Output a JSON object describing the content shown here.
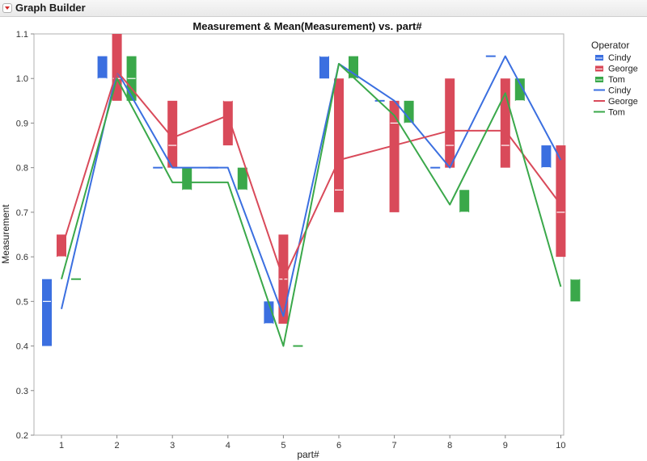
{
  "window": {
    "title": "Graph Builder",
    "menu_icon": "red-triangle-icon"
  },
  "colors": {
    "Cindy": "#3b6fe0",
    "George": "#d94a5a",
    "Tom": "#3aa84a"
  },
  "chart_data": {
    "type": "box-and-line",
    "title": "Measurement & Mean(Measurement) vs. part#",
    "xlabel": "part#",
    "ylabel": "Measurement",
    "categories": [
      "1",
      "2",
      "3",
      "4",
      "5",
      "6",
      "7",
      "8",
      "9",
      "10"
    ],
    "ylim": [
      0.2,
      1.1
    ],
    "yticks": [
      "0.2",
      "0.3",
      "0.4",
      "0.5",
      "0.6",
      "0.7",
      "0.8",
      "0.9",
      "1.0",
      "1.1"
    ],
    "legend": {
      "title": "Operator",
      "position": "right",
      "entries": [
        {
          "name": "Cindy",
          "kind": "box"
        },
        {
          "name": "George",
          "kind": "box"
        },
        {
          "name": "Tom",
          "kind": "box"
        },
        {
          "name": "Cindy",
          "kind": "line"
        },
        {
          "name": "George",
          "kind": "line"
        },
        {
          "name": "Tom",
          "kind": "line"
        }
      ]
    },
    "series": [
      {
        "name": "Cindy",
        "boxes": [
          {
            "min": 0.4,
            "max": 0.55,
            "median": 0.5
          },
          {
            "min": 1.0,
            "max": 1.05,
            "median": 1.0
          },
          {
            "min": 0.8,
            "max": 0.8,
            "median": 0.8
          },
          {
            "min": 0.8,
            "max": 0.8,
            "median": 0.8
          },
          {
            "min": 0.45,
            "max": 0.5,
            "median": 0.45
          },
          {
            "min": 1.0,
            "max": 1.05,
            "median": 1.05
          },
          {
            "min": 0.95,
            "max": 0.95,
            "median": 0.95
          },
          {
            "min": 0.8,
            "max": 0.8,
            "median": 0.8
          },
          {
            "min": 1.05,
            "max": 1.05,
            "median": 1.05
          },
          {
            "min": 0.8,
            "max": 0.85,
            "median": 0.8
          }
        ],
        "means": [
          0.483,
          1.017,
          0.8,
          0.8,
          0.467,
          1.033,
          0.95,
          0.8,
          1.05,
          0.817
        ]
      },
      {
        "name": "George",
        "boxes": [
          {
            "min": 0.6,
            "max": 0.65,
            "median": 0.6
          },
          {
            "min": 0.95,
            "max": 1.1,
            "median": 1.0
          },
          {
            "min": 0.8,
            "max": 0.95,
            "median": 0.85
          },
          {
            "min": 0.85,
            "max": 0.95,
            "median": 0.95
          },
          {
            "min": 0.45,
            "max": 0.65,
            "median": 0.55
          },
          {
            "min": 0.7,
            "max": 1.0,
            "median": 0.75
          },
          {
            "min": 0.7,
            "max": 0.95,
            "median": 0.9
          },
          {
            "min": 0.8,
            "max": 1.0,
            "median": 0.85
          },
          {
            "min": 0.8,
            "max": 1.0,
            "median": 0.85
          },
          {
            "min": 0.6,
            "max": 0.85,
            "median": 0.7
          }
        ],
        "means": [
          0.617,
          1.017,
          0.867,
          0.917,
          0.55,
          0.817,
          0.85,
          0.883,
          0.883,
          0.717
        ]
      },
      {
        "name": "Tom",
        "boxes": [
          {
            "min": 0.55,
            "max": 0.55,
            "median": 0.55
          },
          {
            "min": 0.95,
            "max": 1.05,
            "median": 1.0
          },
          {
            "min": 0.75,
            "max": 0.8,
            "median": 0.75
          },
          {
            "min": 0.75,
            "max": 0.8,
            "median": 0.75
          },
          {
            "min": 0.4,
            "max": 0.4,
            "median": 0.4
          },
          {
            "min": 1.0,
            "max": 1.05,
            "median": 1.0
          },
          {
            "min": 0.9,
            "max": 0.95,
            "median": 0.9
          },
          {
            "min": 0.7,
            "max": 0.75,
            "median": 0.7
          },
          {
            "min": 0.95,
            "max": 1.0,
            "median": 0.95
          },
          {
            "min": 0.5,
            "max": 0.55,
            "median": 0.55
          }
        ],
        "means": [
          0.55,
          1.0,
          0.767,
          0.767,
          0.4,
          1.033,
          0.917,
          0.717,
          0.967,
          0.533
        ]
      }
    ]
  }
}
